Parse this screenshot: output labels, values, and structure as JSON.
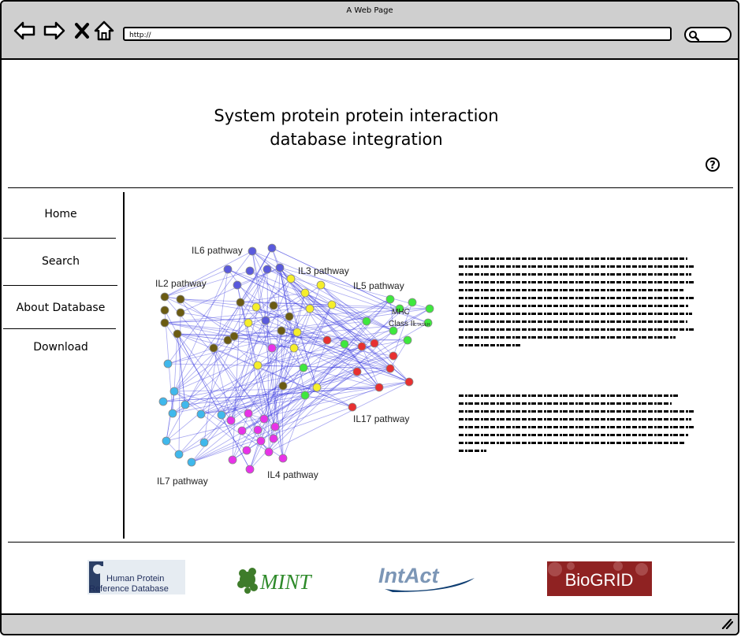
{
  "window": {
    "title": "A Web Page",
    "url": "http://"
  },
  "header": {
    "title_line1": "System protein protein interaction",
    "title_line2": "database integration"
  },
  "sidebar": {
    "items": [
      {
        "label": "Home"
      },
      {
        "label": "Search"
      },
      {
        "label": "About Database"
      },
      {
        "label": "Download"
      }
    ]
  },
  "network": {
    "labels": {
      "il6": "IL6 pathway",
      "il3": "IL3 pathway",
      "il2": "IL2 pathway",
      "il5": "IL5 pathway",
      "mhc1": "MHC",
      "mhc2": "Class II",
      "mhc_small": "CTAGEH",
      "il17": "IL17 pathway",
      "il7": "IL7 pathway",
      "il4": "IL4 pathway"
    },
    "colors": {
      "il6": "#5a5adc",
      "il3": "#f5ee2a",
      "il2": "#6b5b12",
      "il5": "#3ee83e",
      "il17": "#e83030",
      "il7": "#3fb8ec",
      "il4": "#e832e8",
      "edge": "#3d3de0"
    }
  },
  "footer": {
    "logos": [
      {
        "name": "Human Protein Reference Database",
        "line1": "Human Protein",
        "line2": "Reference Database"
      },
      {
        "name": "MINT",
        "text": "MINT"
      },
      {
        "name": "IntAct",
        "text": "IntAct"
      },
      {
        "name": "BioGRID",
        "text": "BioGRID"
      }
    ]
  }
}
